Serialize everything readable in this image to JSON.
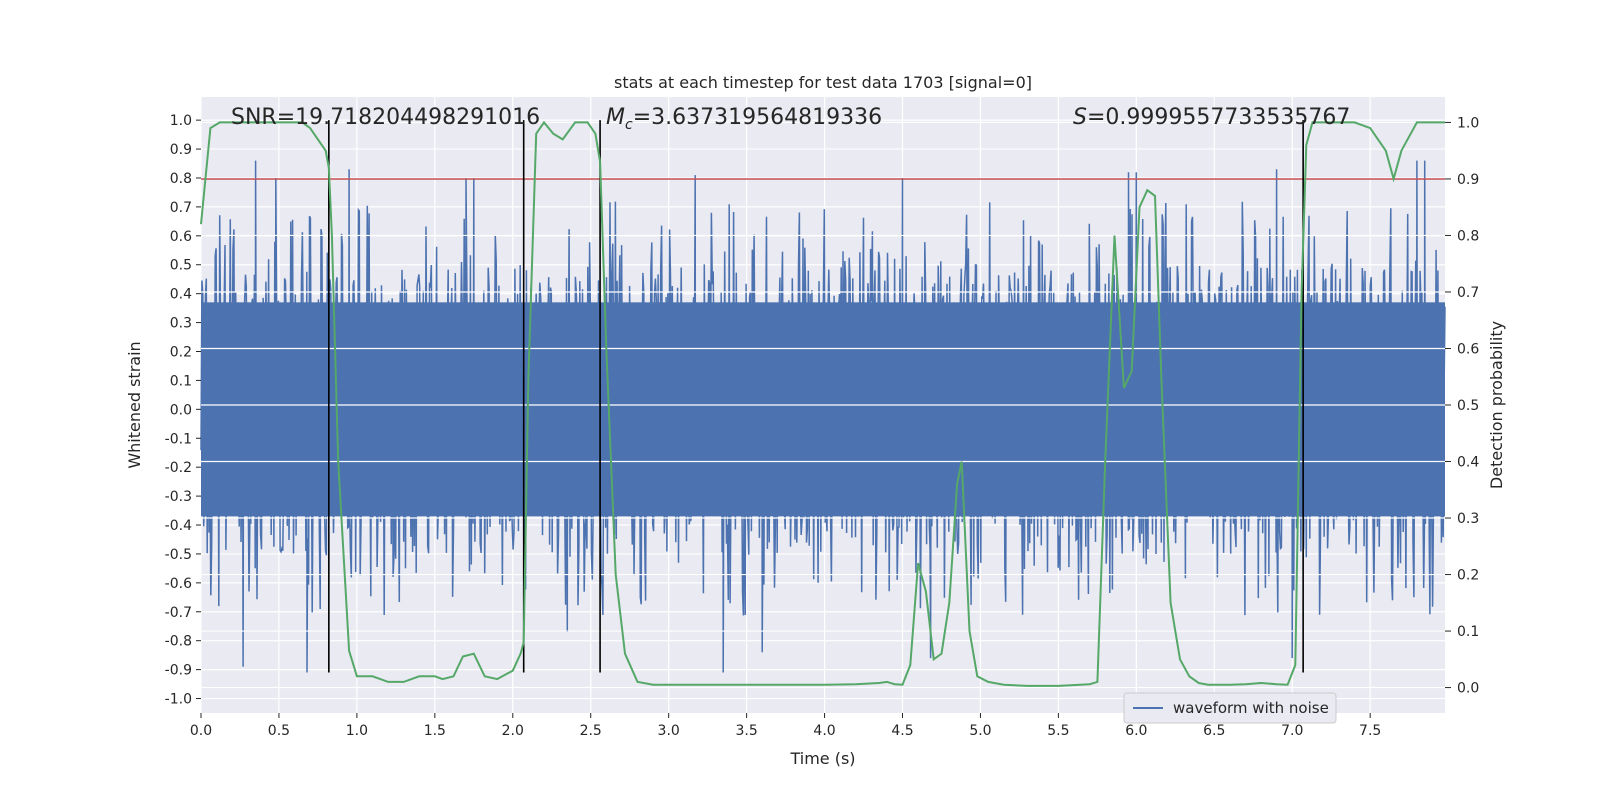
{
  "chart_data": {
    "type": "line",
    "title": "stats at each timestep for test data 1703 [signal=0]",
    "xlabel": "Time (s)",
    "ylabel": "Whitened strain",
    "y2label": "Detection probability",
    "xlim": [
      0.0,
      7.98
    ],
    "ylim": [
      -1.05,
      1.08
    ],
    "y2lim": [
      -0.045,
      1.045
    ],
    "xticks": [
      0.0,
      0.5,
      1.0,
      1.5,
      2.0,
      2.5,
      3.0,
      3.5,
      4.0,
      4.5,
      5.0,
      5.5,
      6.0,
      6.5,
      7.0,
      7.5
    ],
    "xtick_labels": [
      "0.0",
      "0.5",
      "1.0",
      "1.5",
      "2.0",
      "2.5",
      "3.0",
      "3.5",
      "4.0",
      "4.5",
      "5.0",
      "5.5",
      "6.0",
      "6.5",
      "7.0",
      "7.5"
    ],
    "yticks": [
      -1.0,
      -0.9,
      -0.8,
      -0.7,
      -0.6,
      -0.5,
      -0.4,
      -0.3,
      -0.2,
      -0.1,
      0.0,
      0.1,
      0.2,
      0.3,
      0.4,
      0.5,
      0.6,
      0.7,
      0.8,
      0.9,
      1.0
    ],
    "ytick_labels": [
      "-1.0",
      "-0.9",
      "-0.8",
      "-0.7",
      "-0.6",
      "-0.5",
      "-0.4",
      "-0.3",
      "-0.2",
      "-0.1",
      "0.0",
      "0.1",
      "0.2",
      "0.3",
      "0.4",
      "0.5",
      "0.6",
      "0.7",
      "0.8",
      "0.9",
      "1.0"
    ],
    "y2ticks": [
      0.0,
      0.1,
      0.2,
      0.3,
      0.4,
      0.5,
      0.6,
      0.7,
      0.8,
      0.9,
      1.0
    ],
    "y2tick_labels": [
      "0.0",
      "0.1",
      "0.2",
      "0.3",
      "0.4",
      "0.5",
      "0.6",
      "0.7",
      "0.8",
      "0.9",
      "1.0"
    ],
    "annotations": {
      "snr": "SNR=19.718204498291016",
      "mc_symbol": "M",
      "mc_sub": "c",
      "mc_value": "=3.637319564819336",
      "s_symbol": "S",
      "s_value": "=0.9999557733535767"
    },
    "threshold_line": {
      "y2": 0.9,
      "color": "#c44e52"
    },
    "vertical_lines": [
      0.82,
      2.07,
      2.56,
      7.07
    ],
    "waveform": {
      "name": "waveform with noise",
      "color": "#4c72b0",
      "duration_s": 7.98,
      "core_band": 0.37,
      "typical_peak": 0.5,
      "spikes": [
        [
          0.35,
          0.86
        ],
        [
          0.48,
          0.8
        ],
        [
          0.95,
          0.83
        ],
        [
          1.7,
          0.8
        ],
        [
          1.75,
          0.8
        ],
        [
          3.17,
          0.81
        ],
        [
          4.5,
          0.8
        ],
        [
          5.95,
          0.82
        ],
        [
          6.0,
          0.82
        ],
        [
          6.9,
          0.83
        ],
        [
          7.8,
          0.86
        ],
        [
          7.85,
          0.86
        ],
        [
          0.27,
          -0.89
        ],
        [
          0.68,
          -0.91
        ],
        [
          2.35,
          -0.77
        ],
        [
          3.35,
          -0.91
        ],
        [
          3.6,
          -0.84
        ],
        [
          4.68,
          -0.86
        ],
        [
          7.0,
          -0.86
        ]
      ]
    },
    "detection_probability": {
      "color": "#55a868",
      "x": [
        0.0,
        0.06,
        0.12,
        0.2,
        0.3,
        0.4,
        0.5,
        0.6,
        0.65,
        0.7,
        0.75,
        0.8,
        0.82,
        0.84,
        0.88,
        0.95,
        1.0,
        1.1,
        1.2,
        1.3,
        1.4,
        1.5,
        1.55,
        1.62,
        1.68,
        1.75,
        1.82,
        1.9,
        2.0,
        2.05,
        2.07,
        2.1,
        2.15,
        2.2,
        2.26,
        2.32,
        2.4,
        2.48,
        2.53,
        2.56,
        2.6,
        2.66,
        2.72,
        2.8,
        2.9,
        3.0,
        3.5,
        4.0,
        4.2,
        4.35,
        4.4,
        4.45,
        4.5,
        4.55,
        4.6,
        4.65,
        4.7,
        4.75,
        4.8,
        4.85,
        4.88,
        4.93,
        4.98,
        5.05,
        5.15,
        5.3,
        5.5,
        5.7,
        5.75,
        5.8,
        5.86,
        5.92,
        5.97,
        6.02,
        6.07,
        6.12,
        6.16,
        6.22,
        6.28,
        6.34,
        6.4,
        6.46,
        6.52,
        6.6,
        6.7,
        6.8,
        6.9,
        6.97,
        7.02,
        7.06,
        7.09,
        7.13,
        7.18,
        7.24,
        7.3,
        7.4,
        7.5,
        7.55,
        7.6,
        7.65,
        7.7,
        7.8,
        7.9,
        7.98
      ],
      "y": [
        0.82,
        0.99,
        1.0,
        1.0,
        1.0,
        1.0,
        1.0,
        1.0,
        1.0,
        0.99,
        0.97,
        0.95,
        0.92,
        0.8,
        0.4,
        0.065,
        0.02,
        0.02,
        0.01,
        0.01,
        0.02,
        0.02,
        0.015,
        0.02,
        0.055,
        0.06,
        0.02,
        0.015,
        0.03,
        0.06,
        0.08,
        0.55,
        0.98,
        1.0,
        0.98,
        0.97,
        1.0,
        1.0,
        0.98,
        0.93,
        0.6,
        0.2,
        0.06,
        0.01,
        0.005,
        0.005,
        0.005,
        0.005,
        0.006,
        0.008,
        0.01,
        0.006,
        0.005,
        0.04,
        0.22,
        0.17,
        0.05,
        0.06,
        0.15,
        0.36,
        0.4,
        0.1,
        0.02,
        0.01,
        0.005,
        0.003,
        0.003,
        0.006,
        0.01,
        0.4,
        0.8,
        0.53,
        0.56,
        0.85,
        0.88,
        0.87,
        0.55,
        0.15,
        0.05,
        0.02,
        0.008,
        0.005,
        0.005,
        0.005,
        0.006,
        0.008,
        0.006,
        0.005,
        0.04,
        0.7,
        0.96,
        1.0,
        1.0,
        1.0,
        1.0,
        1.0,
        0.99,
        0.97,
        0.95,
        0.9,
        0.95,
        1.0,
        1.0,
        1.0
      ]
    },
    "legend": {
      "entries": [
        "waveform with noise"
      ],
      "location": "lower-right"
    }
  }
}
